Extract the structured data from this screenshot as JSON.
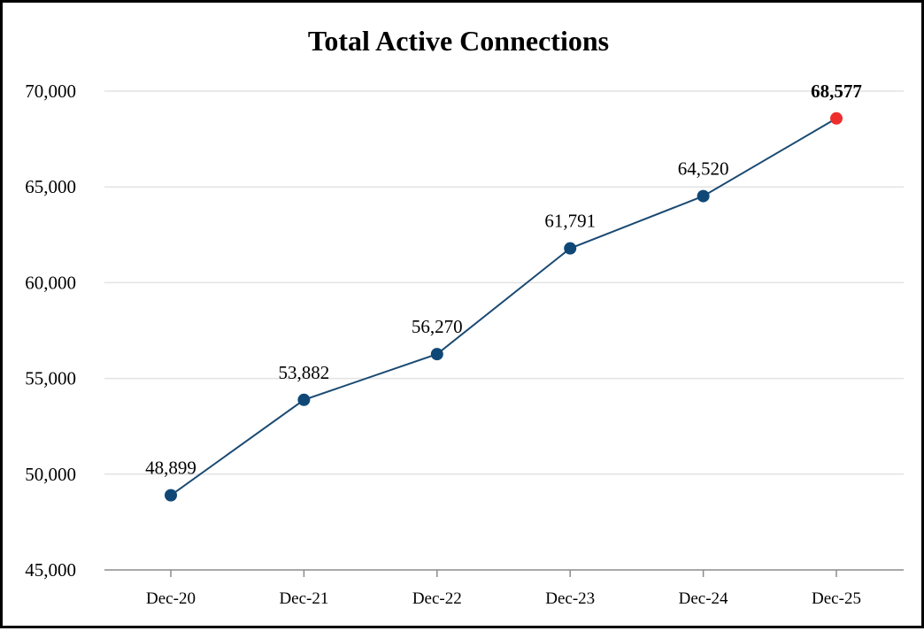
{
  "chart_data": {
    "type": "line",
    "title": "Total Active Connections",
    "xlabel": "",
    "ylabel": "",
    "categories": [
      "Dec-20",
      "Dec-21",
      "Dec-22",
      "Dec-23",
      "Dec-24",
      "Dec-25"
    ],
    "values": [
      48899,
      53882,
      56270,
      61791,
      64520,
      68577
    ],
    "data_labels": [
      "48,899",
      "53,882",
      "56,270",
      "61,791",
      "64,520",
      "68,577"
    ],
    "yticks": [
      45000,
      50000,
      55000,
      60000,
      65000,
      70000
    ],
    "ytick_labels": [
      "45,000",
      "50,000",
      "55,000",
      "60,000",
      "65,000",
      "70,000"
    ],
    "ylim": [
      45000,
      70000
    ],
    "grid": true,
    "legend": "none",
    "highlight_index": 5,
    "colors": {
      "line": "#1a4a73",
      "marker": "#0f4877",
      "highlight": "#ee2d2d",
      "grid": "#e3e3e3",
      "axis": "#8c8c8c"
    }
  }
}
